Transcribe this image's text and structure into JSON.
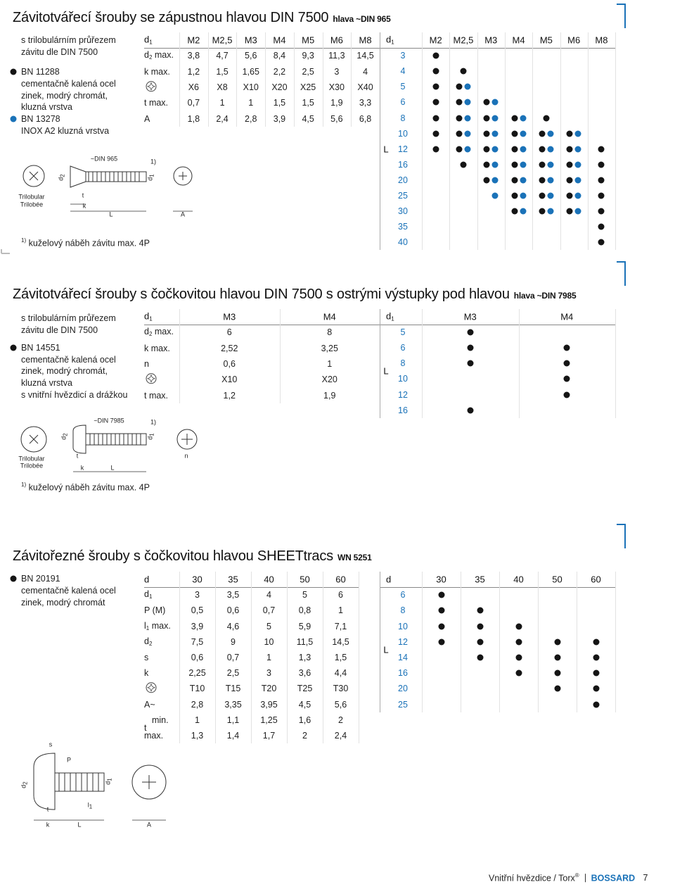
{
  "sections": [
    {
      "title": "Závitotvářecí šrouby se zápustnou hlavou DIN 7500",
      "suffix": "hlava ~DIN 965",
      "intro": [
        "s trilobulárním průřezem",
        "závitu dle DIN 7500"
      ],
      "items": [
        {
          "bullet": "black",
          "code": "BN 11288",
          "lines": [
            "cementačně kalená ocel",
            "zinek, modrý chromát,",
            "kluzná vrstva"
          ]
        },
        {
          "bullet": "blue",
          "code": "BN 13278",
          "lines": [
            "INOX A2 kluzná vrstva"
          ]
        }
      ],
      "dims": {
        "header": {
          "label": {
            "t": "d",
            "sub": "1"
          },
          "cols": [
            "M2",
            "M2,5",
            "M3",
            "M4",
            "M5",
            "M6",
            "M8"
          ]
        },
        "rows": [
          {
            "label": {
              "t": "d",
              "sub": "2",
              "q": "max."
            },
            "values": [
              "3,8",
              "4,7",
              "5,6",
              "8,4",
              "9,3",
              "11,3",
              "14,5"
            ]
          },
          {
            "label": {
              "t": "k max."
            },
            "values": [
              "1,2",
              "1,5",
              "1,65",
              "2,2",
              "2,5",
              "3",
              "4"
            ]
          },
          {
            "label": null,
            "values": [
              "X6",
              "X8",
              "X10",
              "X20",
              "X25",
              "X30",
              "X40"
            ]
          },
          {
            "label": {
              "t": "t max."
            },
            "values": [
              "0,7",
              "1",
              "1",
              "1,5",
              "1,5",
              "1,9",
              "3,3"
            ]
          },
          {
            "label": {
              "t": "A"
            },
            "values": [
              "1,8",
              "2,4",
              "2,8",
              "3,9",
              "4,5",
              "5,6",
              "6,8"
            ]
          }
        ]
      },
      "avail": {
        "label": {
          "t": "d",
          "sub": "1"
        },
        "axis": "L",
        "cols": [
          "M2",
          "M2,5",
          "M3",
          "M4",
          "M5",
          "M6",
          "M8"
        ],
        "rows": [
          {
            "L": "3",
            "cells": [
              "k",
              "",
              "",
              "",
              "",
              "",
              ""
            ]
          },
          {
            "L": "4",
            "cells": [
              "k",
              "k",
              "",
              "",
              "",
              "",
              ""
            ]
          },
          {
            "L": "5",
            "cells": [
              "k",
              "kb",
              "",
              "",
              "",
              "",
              ""
            ]
          },
          {
            "L": "6",
            "cells": [
              "k",
              "kb",
              "kb",
              "",
              "",
              "",
              ""
            ]
          },
          {
            "L": "8",
            "cells": [
              "k",
              "kb",
              "kb",
              "kb",
              "k",
              "",
              ""
            ]
          },
          {
            "L": "10",
            "cells": [
              "k",
              "kb",
              "kb",
              "kb",
              "kb",
              "kb",
              ""
            ]
          },
          {
            "L": "12",
            "cells": [
              "k",
              "kb",
              "kb",
              "kb",
              "kb",
              "kb",
              "k"
            ]
          },
          {
            "L": "16",
            "cells": [
              "",
              "k",
              "kb",
              "kb",
              "kb",
              "kb",
              "k"
            ]
          },
          {
            "L": "20",
            "cells": [
              "",
              "",
              "kb",
              "kb",
              "kb",
              "kb",
              "k"
            ]
          },
          {
            "L": "25",
            "cells": [
              "",
              "",
              "b",
              "kb",
              "kb",
              "kb",
              "k"
            ]
          },
          {
            "L": "30",
            "cells": [
              "",
              "",
              "",
              "kb",
              "kb",
              "kb",
              "k"
            ]
          },
          {
            "L": "35",
            "cells": [
              "",
              "",
              "",
              "",
              "",
              "",
              "k"
            ]
          },
          {
            "L": "40",
            "cells": [
              "",
              "",
              "",
              "",
              "",
              "",
              "k"
            ]
          }
        ]
      },
      "drawing": [
        {
          "t": "~DIN 965"
        },
        {
          "t": "1)"
        },
        {
          "t": "d",
          "sub": "2"
        },
        {
          "t": "d",
          "sub": "1"
        },
        {
          "t": "Trilobular"
        },
        {
          "t": "Trilobée"
        },
        {
          "t": "t"
        },
        {
          "t": "k"
        },
        {
          "t": "L"
        },
        {
          "t": "A"
        }
      ],
      "footnote": {
        "mark": "1)",
        "text": "kuželový náběh závitu max. 4P"
      }
    },
    {
      "title": "Závitotvářecí šrouby s čočkovitou  hlavou DIN 7500 s ostrými výstupky pod hlavou",
      "suffix": "hlava ~DIN 7985",
      "intro": [
        "s trilobulárním průřezem",
        "závitu dle DIN 7500"
      ],
      "items": [
        {
          "bullet": "black",
          "code": "BN 14551",
          "lines": [
            "cementačně kalená ocel",
            "zinek, modrý chromát,",
            "kluzná vrstva"
          ]
        },
        {
          "bullet": null,
          "code": "s vnitřní hvězdicí a drážkou",
          "lines": []
        }
      ],
      "dims": {
        "header": {
          "label": {
            "t": "d",
            "sub": "1"
          },
          "cols": [
            "M3",
            "M4"
          ]
        },
        "rows": [
          {
            "label": {
              "t": "d",
              "sub": "2",
              "q": "max."
            },
            "values": [
              "6",
              "8"
            ]
          },
          {
            "label": {
              "t": "k max."
            },
            "values": [
              "2,52",
              "3,25"
            ]
          },
          {
            "label": {
              "t": "n"
            },
            "values": [
              "0,6",
              "1"
            ]
          },
          {
            "label": null,
            "values": [
              "X10",
              "X20"
            ]
          },
          {
            "label": {
              "t": "t max."
            },
            "values": [
              "1,2",
              "1,9"
            ]
          }
        ]
      },
      "avail": {
        "label": {
          "t": "d",
          "sub": "1"
        },
        "axis": "L",
        "cols": [
          "M3",
          "M4"
        ],
        "rows": [
          {
            "L": "5",
            "cells": [
              "k",
              ""
            ]
          },
          {
            "L": "6",
            "cells": [
              "k",
              "k"
            ]
          },
          {
            "L": "8",
            "cells": [
              "k",
              "k"
            ]
          },
          {
            "L": "10",
            "cells": [
              "",
              "k"
            ]
          },
          {
            "L": "12",
            "cells": [
              "",
              "k"
            ]
          },
          {
            "L": "16",
            "cells": [
              "k",
              ""
            ]
          }
        ]
      },
      "drawing": [
        {
          "t": "~DIN 7985"
        },
        {
          "t": "1)"
        },
        {
          "t": "d",
          "sub": "2"
        },
        {
          "t": "d",
          "sub": "1"
        },
        {
          "t": "Trilobular"
        },
        {
          "t": "Trilobée"
        },
        {
          "t": "t"
        },
        {
          "t": "k"
        },
        {
          "t": "L"
        },
        {
          "t": "n"
        }
      ],
      "footnote": {
        "mark": "1)",
        "text": "kuželový náběh závitu max. 4P"
      }
    },
    {
      "title": "Závitořezné šrouby s čočkovitou hlavou SHEETtracs",
      "suffix": "WN 5251",
      "intro": [],
      "items": [
        {
          "bullet": "black",
          "code": "BN 20191",
          "lines": [
            "cementačně kalená ocel",
            "zinek, modrý chromát"
          ]
        }
      ],
      "dims": {
        "header": {
          "label": {
            "t": "d"
          },
          "cols": [
            "30",
            "35",
            "40",
            "50",
            "60"
          ]
        },
        "rows": [
          {
            "label": {
              "t": "d",
              "sub": "1"
            },
            "values": [
              "3",
              "3,5",
              "4",
              "5",
              "6"
            ]
          },
          {
            "label": {
              "t": "P (M)"
            },
            "values": [
              "0,5",
              "0,6",
              "0,7",
              "0,8",
              "1"
            ]
          },
          {
            "label": {
              "t": "l",
              "sub": "1",
              "q": "max."
            },
            "values": [
              "3,9",
              "4,6",
              "5",
              "5,9",
              "7,1"
            ]
          },
          {
            "label": {
              "t": "d",
              "sub": "2"
            },
            "values": [
              "7,5",
              "9",
              "10",
              "11,5",
              "14,5"
            ]
          },
          {
            "label": {
              "t": "s"
            },
            "values": [
              "0,6",
              "0,7",
              "1",
              "1,3",
              "1,5"
            ]
          },
          {
            "label": {
              "t": "k"
            },
            "values": [
              "2,25",
              "2,5",
              "3",
              "3,6",
              "4,4"
            ]
          },
          {
            "label": null,
            "values": [
              "T10",
              "T15",
              "T20",
              "T25",
              "T30"
            ]
          },
          {
            "label": {
              "t": "A~"
            },
            "values": [
              "2,8",
              "3,35",
              "3,95",
              "4,5",
              "5,6"
            ]
          },
          {
            "label": {
              "t": "t",
              "q": "min."
            },
            "values": [
              "1",
              "1,1",
              "1,25",
              "1,6",
              "2"
            ]
          },
          {
            "label": {
              "q": "max."
            },
            "values": [
              "1,3",
              "1,4",
              "1,7",
              "2",
              "2,4"
            ]
          }
        ]
      },
      "avail": {
        "label": {
          "t": "d"
        },
        "axis": "L",
        "cols": [
          "30",
          "35",
          "40",
          "50",
          "60"
        ],
        "rows": [
          {
            "L": "6",
            "cells": [
              "k",
              "",
              "",
              "",
              ""
            ]
          },
          {
            "L": "8",
            "cells": [
              "k",
              "k",
              "",
              "",
              ""
            ]
          },
          {
            "L": "10",
            "cells": [
              "k",
              "k",
              "k",
              "",
              ""
            ]
          },
          {
            "L": "12",
            "cells": [
              "k",
              "k",
              "k",
              "k",
              "k"
            ]
          },
          {
            "L": "14",
            "cells": [
              "",
              "k",
              "k",
              "k",
              "k"
            ]
          },
          {
            "L": "16",
            "cells": [
              "",
              "",
              "k",
              "k",
              "k"
            ]
          },
          {
            "L": "20",
            "cells": [
              "",
              "",
              "",
              "k",
              "k"
            ]
          },
          {
            "L": "25",
            "cells": [
              "",
              "",
              "",
              "",
              "k"
            ]
          }
        ]
      },
      "drawing": [
        {
          "t": "s"
        },
        {
          "t": "P"
        },
        {
          "t": "d",
          "sub": "2"
        },
        {
          "t": "d",
          "sub": "1"
        },
        {
          "t": "l",
          "sub": "1"
        },
        {
          "t": "t"
        },
        {
          "t": "k"
        },
        {
          "t": "L"
        },
        {
          "t": "A"
        }
      ],
      "footnote": null
    }
  ],
  "footer": {
    "text": "Vnitřní hvězdice / Torx",
    "reg": "®",
    "brand": "BOSSARD",
    "page": "7"
  }
}
